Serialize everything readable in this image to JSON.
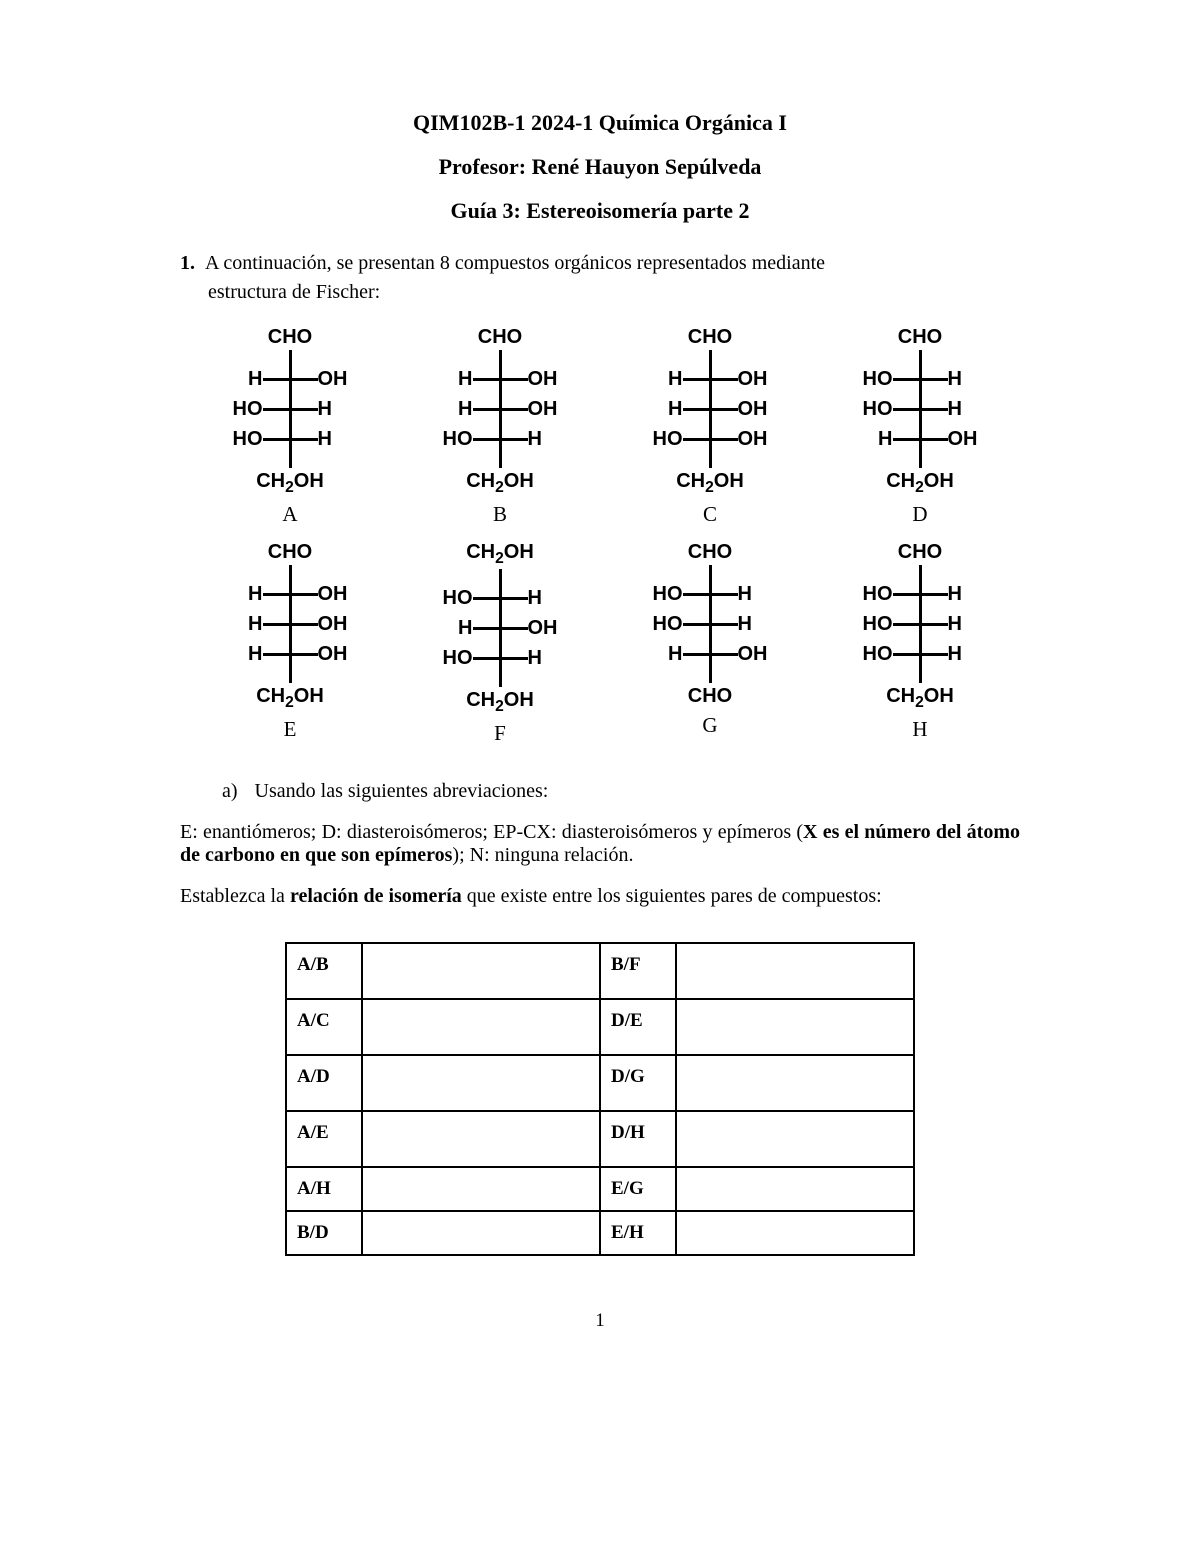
{
  "header": {
    "course": "QIM102B-1 2024-1 Química Orgánica I",
    "professor": "Profesor: René Hauyon Sepúlveda",
    "guide": "Guía 3: Estereoisomería parte 2"
  },
  "question": {
    "number": "1.",
    "intro_a": "A continuación, se presentan 8 compuestos orgánicos representados mediante",
    "intro_b": "estructura de Fischer:"
  },
  "groups": {
    "cho": "CHO",
    "ch2oh_html": "CH<span class='sub'>2</span>OH",
    "h": "H",
    "oh": "OH",
    "ho": "HO"
  },
  "compounds": [
    {
      "label": "A",
      "top": "CHO",
      "rows": [
        [
          "H",
          "OH"
        ],
        [
          "HO",
          "H"
        ],
        [
          "HO",
          "H"
        ]
      ],
      "bottom": "CH2OH"
    },
    {
      "label": "B",
      "top": "CHO",
      "rows": [
        [
          "H",
          "OH"
        ],
        [
          "H",
          "OH"
        ],
        [
          "HO",
          "H"
        ]
      ],
      "bottom": "CH2OH"
    },
    {
      "label": "C",
      "top": "CHO",
      "rows": [
        [
          "H",
          "OH"
        ],
        [
          "H",
          "OH"
        ],
        [
          "HO",
          "OH"
        ]
      ],
      "bottom": "CH2OH"
    },
    {
      "label": "D",
      "top": "CHO",
      "rows": [
        [
          "HO",
          "H"
        ],
        [
          "HO",
          "H"
        ],
        [
          "H",
          "OH"
        ]
      ],
      "bottom": "CH2OH"
    },
    {
      "label": "E",
      "top": "CHO",
      "rows": [
        [
          "H",
          "OH"
        ],
        [
          "H",
          "OH"
        ],
        [
          "H",
          "OH"
        ]
      ],
      "bottom": "CH2OH"
    },
    {
      "label": "F",
      "top": "CH2OH",
      "rows": [
        [
          "HO",
          "H"
        ],
        [
          "H",
          "OH"
        ],
        [
          "HO",
          "H"
        ]
      ],
      "bottom": "CH2OH"
    },
    {
      "label": "G",
      "top": "CHO",
      "rows": [
        [
          "HO",
          "H"
        ],
        [
          "HO",
          "H"
        ],
        [
          "H",
          "OH"
        ]
      ],
      "bottom": "CHO"
    },
    {
      "label": "H",
      "top": "CHO",
      "rows": [
        [
          "HO",
          "H"
        ],
        [
          "HO",
          "H"
        ],
        [
          "HO",
          "H"
        ]
      ],
      "bottom": "CH2OH"
    }
  ],
  "part_a": {
    "letter": "a)",
    "text": "Usando las siguientes abreviaciones:"
  },
  "defs": {
    "line1_a": "E: enantiómeros; D: diasteroisómeros; EP-CX: diasteroisómeros y epímeros (",
    "line1_b": "X es el número del átomo de carbono en que son epímeros",
    "line1_c": "); N: ninguna relación."
  },
  "instruction": {
    "pre": "Establezca la ",
    "bold": "relación de isomería",
    "post": " que existe entre los siguientes pares de compuestos:"
  },
  "table": {
    "rows": [
      {
        "l": "A/B",
        "r": "B/F",
        "short": false
      },
      {
        "l": "A/C",
        "r": "D/E",
        "short": false
      },
      {
        "l": "A/D",
        "r": "D/G",
        "short": false
      },
      {
        "l": "A/E",
        "r": "D/H",
        "short": false
      },
      {
        "l": "A/H",
        "r": "E/G",
        "short": true
      },
      {
        "l": "B/D",
        "r": "E/H",
        "short": true
      }
    ]
  },
  "page_number": "1"
}
